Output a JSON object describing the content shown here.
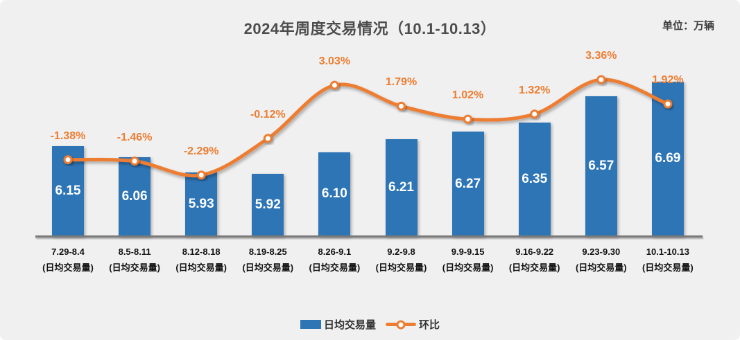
{
  "title": "2024年周度交易情况（10.1-10.13）",
  "unit_label": "单位：万辆",
  "legend": {
    "bar_label": "日均交易量",
    "line_label": "环比"
  },
  "colors": {
    "background": "#F0F0F0",
    "bar": "#2E75B6",
    "line": "#ED7D31",
    "marker_fill": "#FFFFFF",
    "title_text": "#4D4D4D",
    "tick_text": "#111111",
    "bar_value_text": "#FFFFFF",
    "pct_label_text": "#ED7D31",
    "axis_line": "#7A7A7A"
  },
  "chart_data": {
    "type": "bar",
    "combo_with_line": true,
    "title": "2024年周度交易情况（10.1-10.13）",
    "unit": "万辆",
    "categories": [
      "7.29-8.4",
      "8.5-8.11",
      "8.12-8.18",
      "8.19-8.25",
      "8.26-9.1",
      "9.2-9.8",
      "9.9-9.15",
      "9.16-9.22",
      "9.23-9.30",
      "10.1-10.13"
    ],
    "category_sublabel": "(日均交易量)",
    "series": [
      {
        "name": "日均交易量",
        "type": "bar",
        "axis": "left",
        "values": [
          6.15,
          6.06,
          5.93,
          5.92,
          6.1,
          6.21,
          6.27,
          6.35,
          6.57,
          6.69
        ],
        "labels": [
          "6.15",
          "6.06",
          "5.93",
          "5.92",
          "6.10",
          "6.21",
          "6.27",
          "6.35",
          "6.57",
          "6.69"
        ]
      },
      {
        "name": "环比",
        "type": "line",
        "axis": "right",
        "values": [
          -1.38,
          -1.46,
          -2.29,
          -0.12,
          3.03,
          1.79,
          1.02,
          1.32,
          3.36,
          1.92
        ],
        "labels": [
          "-1.38%",
          "-1.46%",
          "-2.29%",
          "-0.12%",
          "3.03%",
          "1.79%",
          "1.02%",
          "1.32%",
          "3.36%",
          "1.92%"
        ]
      }
    ],
    "left_axis_implied_range": [
      5.4,
      6.9
    ],
    "grid": false,
    "legend_position": "bottom"
  }
}
